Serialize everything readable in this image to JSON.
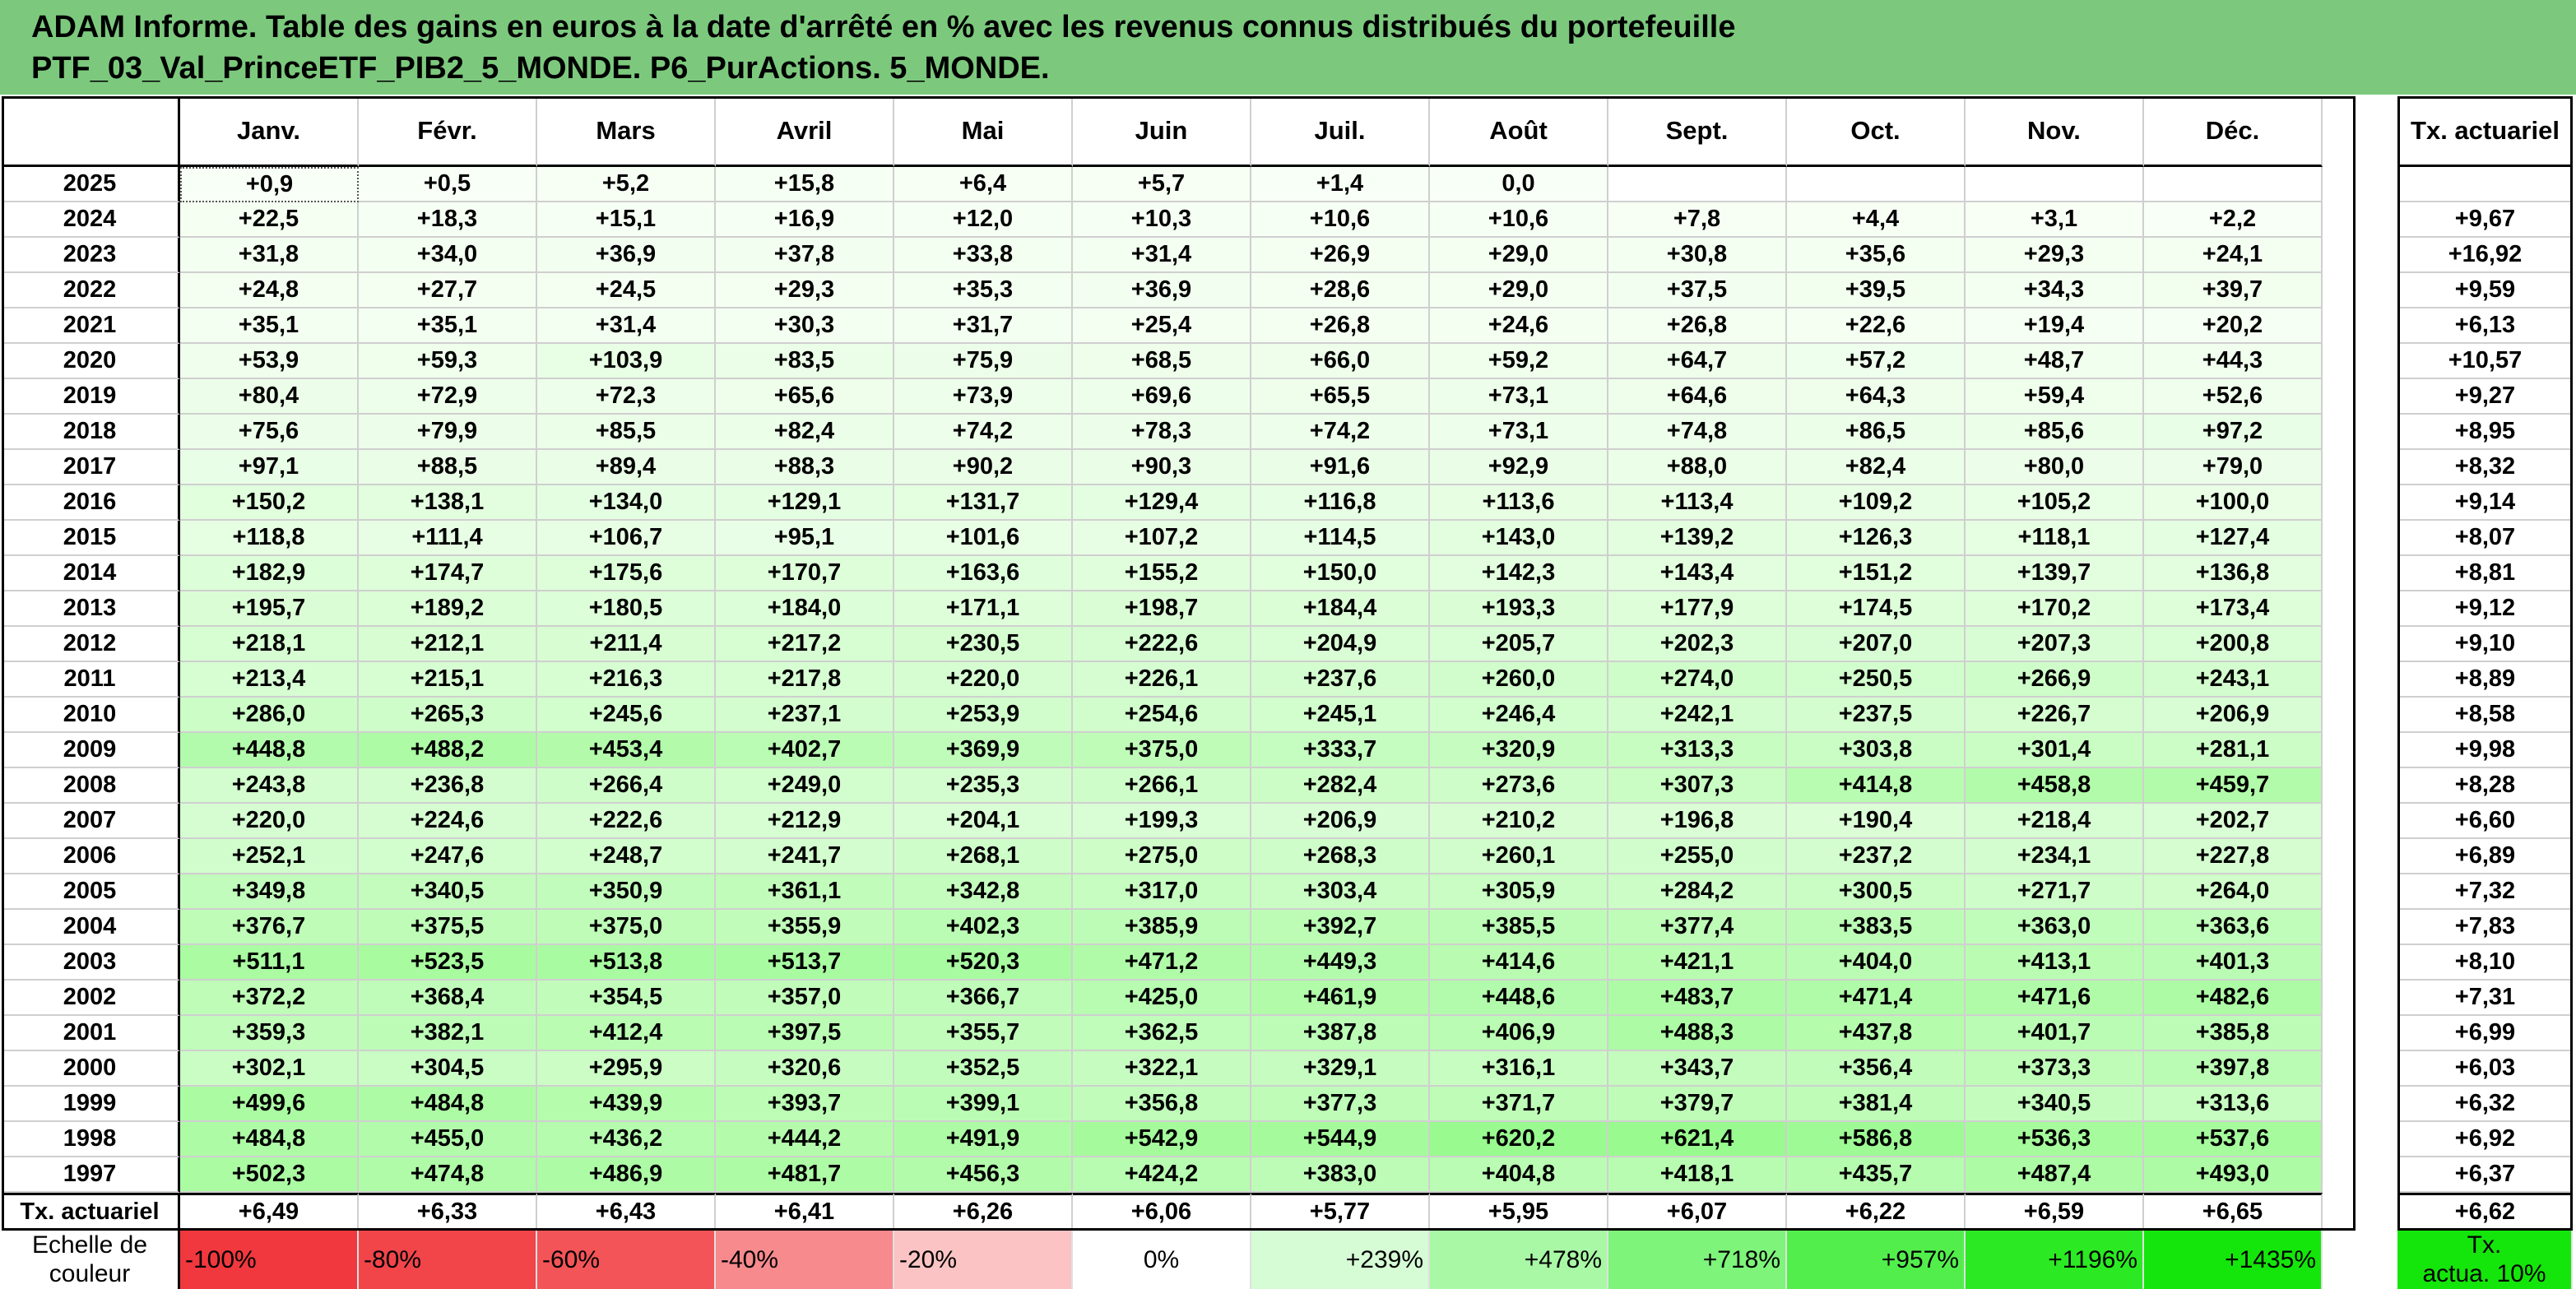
{
  "title": {
    "line1": "ADAM Informe. Table des gains en euros à la date d'arrêté en % avec les revenus connus distribués du portefeuille",
    "line2": "PTF_03_Val_PrinceETF_PIB2_5_MONDE. P6_PurActions. 5_MONDE."
  },
  "colors": {
    "title_bg": "#7cc97e"
  },
  "months": [
    "Janv.",
    "Févr.",
    "Mars",
    "Avril",
    "Mai",
    "Juin",
    "Juil.",
    "Août",
    "Sept.",
    "Oct.",
    "Nov.",
    "Déc."
  ],
  "actuarial_header": "Tx. actuariel",
  "rows": [
    {
      "year": "2025",
      "values": [
        "+0,9",
        "+0,5",
        "+5,2",
        "+15,8",
        "+6,4",
        "+5,7",
        "+1,4",
        "0,0",
        "",
        "",
        "",
        ""
      ],
      "rate": ""
    },
    {
      "year": "2024",
      "values": [
        "+22,5",
        "+18,3",
        "+15,1",
        "+16,9",
        "+12,0",
        "+10,3",
        "+10,6",
        "+10,6",
        "+7,8",
        "+4,4",
        "+3,1",
        "+2,2"
      ],
      "rate": "+9,67"
    },
    {
      "year": "2023",
      "values": [
        "+31,8",
        "+34,0",
        "+36,9",
        "+37,8",
        "+33,8",
        "+31,4",
        "+26,9",
        "+29,0",
        "+30,8",
        "+35,6",
        "+29,3",
        "+24,1"
      ],
      "rate": "+16,92"
    },
    {
      "year": "2022",
      "values": [
        "+24,8",
        "+27,7",
        "+24,5",
        "+29,3",
        "+35,3",
        "+36,9",
        "+28,6",
        "+29,0",
        "+37,5",
        "+39,5",
        "+34,3",
        "+39,7"
      ],
      "rate": "+9,59"
    },
    {
      "year": "2021",
      "values": [
        "+35,1",
        "+35,1",
        "+31,4",
        "+30,3",
        "+31,7",
        "+25,4",
        "+26,8",
        "+24,6",
        "+26,8",
        "+22,6",
        "+19,4",
        "+20,2"
      ],
      "rate": "+6,13"
    },
    {
      "year": "2020",
      "values": [
        "+53,9",
        "+59,3",
        "+103,9",
        "+83,5",
        "+75,9",
        "+68,5",
        "+66,0",
        "+59,2",
        "+64,7",
        "+57,2",
        "+48,7",
        "+44,3"
      ],
      "rate": "+10,57"
    },
    {
      "year": "2019",
      "values": [
        "+80,4",
        "+72,9",
        "+72,3",
        "+65,6",
        "+73,9",
        "+69,6",
        "+65,5",
        "+73,1",
        "+64,6",
        "+64,3",
        "+59,4",
        "+52,6"
      ],
      "rate": "+9,27"
    },
    {
      "year": "2018",
      "values": [
        "+75,6",
        "+79,9",
        "+85,5",
        "+82,4",
        "+74,2",
        "+78,3",
        "+74,2",
        "+73,1",
        "+74,8",
        "+86,5",
        "+85,6",
        "+97,2"
      ],
      "rate": "+8,95"
    },
    {
      "year": "2017",
      "values": [
        "+97,1",
        "+88,5",
        "+89,4",
        "+88,3",
        "+90,2",
        "+90,3",
        "+91,6",
        "+92,9",
        "+88,0",
        "+82,4",
        "+80,0",
        "+79,0"
      ],
      "rate": "+8,32"
    },
    {
      "year": "2016",
      "values": [
        "+150,2",
        "+138,1",
        "+134,0",
        "+129,1",
        "+131,7",
        "+129,4",
        "+116,8",
        "+113,6",
        "+113,4",
        "+109,2",
        "+105,2",
        "+100,0"
      ],
      "rate": "+9,14"
    },
    {
      "year": "2015",
      "values": [
        "+118,8",
        "+111,4",
        "+106,7",
        "+95,1",
        "+101,6",
        "+107,2",
        "+114,5",
        "+143,0",
        "+139,2",
        "+126,3",
        "+118,1",
        "+127,4"
      ],
      "rate": "+8,07"
    },
    {
      "year": "2014",
      "values": [
        "+182,9",
        "+174,7",
        "+175,6",
        "+170,7",
        "+163,6",
        "+155,2",
        "+150,0",
        "+142,3",
        "+143,4",
        "+151,2",
        "+139,7",
        "+136,8"
      ],
      "rate": "+8,81"
    },
    {
      "year": "2013",
      "values": [
        "+195,7",
        "+189,2",
        "+180,5",
        "+184,0",
        "+171,1",
        "+198,7",
        "+184,4",
        "+193,3",
        "+177,9",
        "+174,5",
        "+170,2",
        "+173,4"
      ],
      "rate": "+9,12"
    },
    {
      "year": "2012",
      "values": [
        "+218,1",
        "+212,1",
        "+211,4",
        "+217,2",
        "+230,5",
        "+222,6",
        "+204,9",
        "+205,7",
        "+202,3",
        "+207,0",
        "+207,3",
        "+200,8"
      ],
      "rate": "+9,10"
    },
    {
      "year": "2011",
      "values": [
        "+213,4",
        "+215,1",
        "+216,3",
        "+217,8",
        "+220,0",
        "+226,1",
        "+237,6",
        "+260,0",
        "+274,0",
        "+250,5",
        "+266,9",
        "+243,1"
      ],
      "rate": "+8,89"
    },
    {
      "year": "2010",
      "values": [
        "+286,0",
        "+265,3",
        "+245,6",
        "+237,1",
        "+253,9",
        "+254,6",
        "+245,1",
        "+246,4",
        "+242,1",
        "+237,5",
        "+226,7",
        "+206,9"
      ],
      "rate": "+8,58"
    },
    {
      "year": "2009",
      "values": [
        "+448,8",
        "+488,2",
        "+453,4",
        "+402,7",
        "+369,9",
        "+375,0",
        "+333,7",
        "+320,9",
        "+313,3",
        "+303,8",
        "+301,4",
        "+281,1"
      ],
      "rate": "+9,98"
    },
    {
      "year": "2008",
      "values": [
        "+243,8",
        "+236,8",
        "+266,4",
        "+249,0",
        "+235,3",
        "+266,1",
        "+282,4",
        "+273,6",
        "+307,3",
        "+414,8",
        "+458,8",
        "+459,7"
      ],
      "rate": "+8,28"
    },
    {
      "year": "2007",
      "values": [
        "+220,0",
        "+224,6",
        "+222,6",
        "+212,9",
        "+204,1",
        "+199,3",
        "+206,9",
        "+210,2",
        "+196,8",
        "+190,4",
        "+218,4",
        "+202,7"
      ],
      "rate": "+6,60"
    },
    {
      "year": "2006",
      "values": [
        "+252,1",
        "+247,6",
        "+248,7",
        "+241,7",
        "+268,1",
        "+275,0",
        "+268,3",
        "+260,1",
        "+255,0",
        "+237,2",
        "+234,1",
        "+227,8"
      ],
      "rate": "+6,89"
    },
    {
      "year": "2005",
      "values": [
        "+349,8",
        "+340,5",
        "+350,9",
        "+361,1",
        "+342,8",
        "+317,0",
        "+303,4",
        "+305,9",
        "+284,2",
        "+300,5",
        "+271,7",
        "+264,0"
      ],
      "rate": "+7,32"
    },
    {
      "year": "2004",
      "values": [
        "+376,7",
        "+375,5",
        "+375,0",
        "+355,9",
        "+402,3",
        "+385,9",
        "+392,7",
        "+385,5",
        "+377,4",
        "+383,5",
        "+363,0",
        "+363,6"
      ],
      "rate": "+7,83"
    },
    {
      "year": "2003",
      "values": [
        "+511,1",
        "+523,5",
        "+513,8",
        "+513,7",
        "+520,3",
        "+471,2",
        "+449,3",
        "+414,6",
        "+421,1",
        "+404,0",
        "+413,1",
        "+401,3"
      ],
      "rate": "+8,10"
    },
    {
      "year": "2002",
      "values": [
        "+372,2",
        "+368,4",
        "+354,5",
        "+357,0",
        "+366,7",
        "+425,0",
        "+461,9",
        "+448,6",
        "+483,7",
        "+471,4",
        "+471,6",
        "+482,6"
      ],
      "rate": "+7,31"
    },
    {
      "year": "2001",
      "values": [
        "+359,3",
        "+382,1",
        "+412,4",
        "+397,5",
        "+355,7",
        "+362,5",
        "+387,8",
        "+406,9",
        "+488,3",
        "+437,8",
        "+401,7",
        "+385,8"
      ],
      "rate": "+6,99"
    },
    {
      "year": "2000",
      "values": [
        "+302,1",
        "+304,5",
        "+295,9",
        "+320,6",
        "+352,5",
        "+322,1",
        "+329,1",
        "+316,1",
        "+343,7",
        "+356,4",
        "+373,3",
        "+397,8"
      ],
      "rate": "+6,03"
    },
    {
      "year": "1999",
      "values": [
        "+499,6",
        "+484,8",
        "+439,9",
        "+393,7",
        "+399,1",
        "+356,8",
        "+377,3",
        "+371,7",
        "+379,7",
        "+381,4",
        "+340,5",
        "+313,6"
      ],
      "rate": "+6,32"
    },
    {
      "year": "1998",
      "values": [
        "+484,8",
        "+455,0",
        "+436,2",
        "+444,2",
        "+491,9",
        "+542,9",
        "+544,9",
        "+620,2",
        "+621,4",
        "+586,8",
        "+536,3",
        "+537,6"
      ],
      "rate": "+6,92"
    },
    {
      "year": "1997",
      "values": [
        "+502,3",
        "+474,8",
        "+486,9",
        "+481,7",
        "+456,3",
        "+424,2",
        "+383,0",
        "+404,8",
        "+418,1",
        "+435,7",
        "+487,4",
        "+493,0"
      ],
      "rate": "+6,37"
    }
  ],
  "footer_row": {
    "label": "Tx. actuariel",
    "values": [
      "+6,49",
      "+6,33",
      "+6,43",
      "+6,41",
      "+6,26",
      "+6,06",
      "+5,77",
      "+5,95",
      "+6,07",
      "+6,22",
      "+6,59",
      "+6,65"
    ],
    "rate": "+6,62"
  },
  "legend": {
    "label_line1": "Echelle de",
    "label_line2": "couleur",
    "items": [
      {
        "text": "-100%",
        "color": "#f0383e"
      },
      {
        "text": "-80%",
        "color": "#f1454a"
      },
      {
        "text": "-60%",
        "color": "#f35457"
      },
      {
        "text": "-40%",
        "color": "#f68a8d"
      },
      {
        "text": "-20%",
        "color": "#fbc3c4"
      },
      {
        "text": "0%",
        "color": "#ffffff"
      },
      {
        "text": "+239%",
        "color": "#d6fcd6"
      },
      {
        "text": "+478%",
        "color": "#a8f8a5"
      },
      {
        "text": "+718%",
        "color": "#7ef47a"
      },
      {
        "text": "+957%",
        "color": "#52ef4c"
      },
      {
        "text": "+1196%",
        "color": "#2bea23"
      },
      {
        "text": "+1435%",
        "color": "#14e60b"
      }
    ],
    "actuarial_line1": "Tx.",
    "actuarial_line2": "actua. 10%",
    "actuarial_color": "#14e60b"
  }
}
